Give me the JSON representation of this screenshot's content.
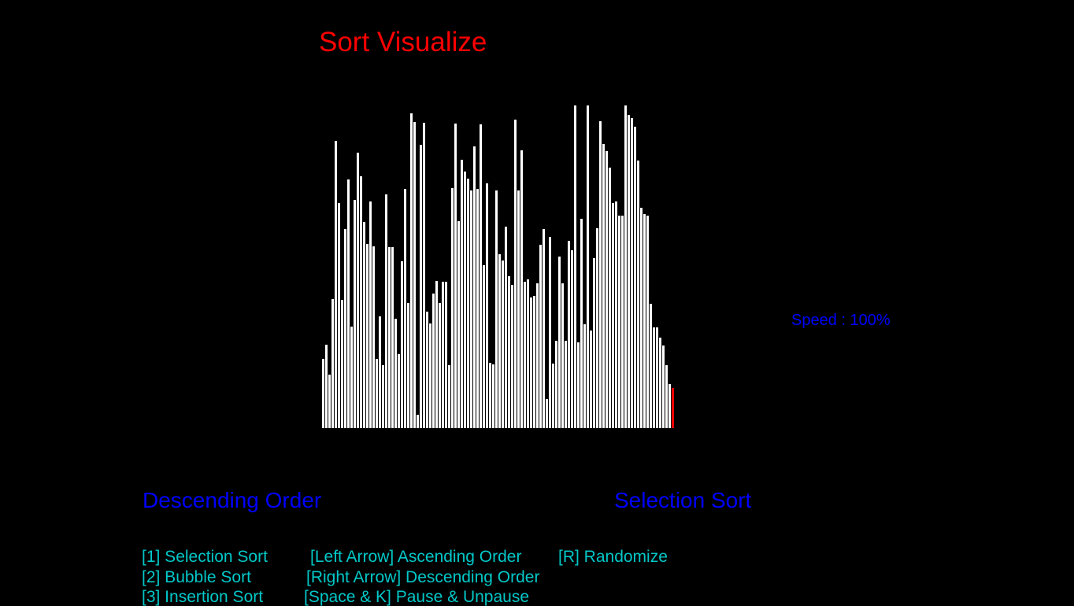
{
  "title": "Sort Visualize",
  "speed": {
    "label": "Speed : 100%"
  },
  "status": {
    "order": "Descending Order",
    "algorithm": "Selection Sort"
  },
  "help": {
    "row1": {
      "col1": "[1] Selection Sort",
      "col2": "[Left Arrow] Ascending Order",
      "col3": "[R] Randomize"
    },
    "row2": {
      "col1": "[2] Bubble Sort",
      "col2": "[Right Arrow]  Descending Order"
    },
    "row3": {
      "col1": "[3] Insertion Sort",
      "col2": "[Space & K] Pause & Unpause"
    }
  },
  "colors": {
    "title": "#ff0000",
    "status": "#0000ff",
    "help": "#00c8c8",
    "bar": "#ffffff",
    "bar_active": "#ff0000",
    "background": "#000000"
  },
  "bars": {
    "max_value": 410,
    "active_index": 111,
    "values": [
      88,
      106,
      68,
      164,
      365,
      286,
      163,
      253,
      316,
      129,
      290,
      350,
      320,
      262,
      234,
      288,
      231,
      88,
      142,
      80,
      297,
      230,
      230,
      139,
      94,
      212,
      304,
      159,
      400,
      389,
      17,
      360,
      388,
      148,
      133,
      171,
      187,
      159,
      186,
      186,
      80,
      305,
      387,
      263,
      341,
      326,
      317,
      302,
      358,
      304,
      386,
      207,
      311,
      83,
      81,
      302,
      221,
      213,
      256,
      193,
      182,
      392,
      302,
      353,
      186,
      189,
      166,
      168,
      184,
      233,
      253,
      37,
      243,
      82,
      111,
      218,
      184,
      111,
      238,
      226,
      410,
      109,
      266,
      132,
      410,
      124,
      216,
      254,
      390,
      361,
      352,
      331,
      286,
      288,
      270,
      270,
      410,
      398,
      394,
      383,
      340,
      280,
      272,
      270,
      158,
      128,
      128,
      115,
      105,
      80,
      56,
      51
    ]
  }
}
